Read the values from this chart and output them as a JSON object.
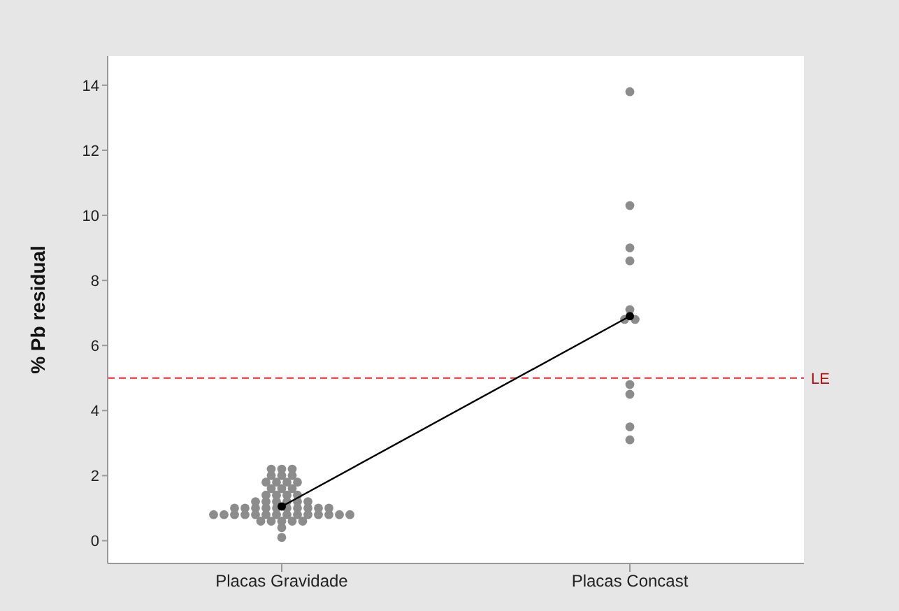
{
  "chart_data": {
    "type": "scatter",
    "ylabel": "% Pb residual",
    "categories": [
      "Placas Gravidade",
      "Placas Concast"
    ],
    "ylim": [
      -0.7,
      14.9
    ],
    "yticks": [
      0,
      2,
      4,
      6,
      8,
      10,
      12,
      14
    ],
    "grid": false,
    "legend": false,
    "series": [
      {
        "color": "#8c8c8c",
        "marker": "circle",
        "x": [
          "Placas Gravidade",
          "Placas Gravidade",
          "Placas Gravidade",
          "Placas Gravidade",
          "Placas Gravidade",
          "Placas Gravidade",
          "Placas Gravidade",
          "Placas Gravidade",
          "Placas Gravidade",
          "Placas Gravidade",
          "Placas Gravidade",
          "Placas Gravidade",
          "Placas Gravidade",
          "Placas Gravidade",
          "Placas Gravidade",
          "Placas Gravidade",
          "Placas Gravidade",
          "Placas Gravidade",
          "Placas Gravidade",
          "Placas Gravidade",
          "Placas Gravidade",
          "Placas Gravidade",
          "Placas Gravidade",
          "Placas Gravidade",
          "Placas Gravidade",
          "Placas Gravidade",
          "Placas Gravidade",
          "Placas Gravidade",
          "Placas Gravidade",
          "Placas Gravidade",
          "Placas Gravidade",
          "Placas Gravidade",
          "Placas Gravidade",
          "Placas Gravidade",
          "Placas Gravidade",
          "Placas Gravidade",
          "Placas Gravidade",
          "Placas Gravidade",
          "Placas Gravidade",
          "Placas Gravidade",
          "Placas Gravidade",
          "Placas Gravidade",
          "Placas Gravidade",
          "Placas Gravidade",
          "Placas Gravidade",
          "Placas Gravidade",
          "Placas Gravidade",
          "Placas Gravidade",
          "Placas Gravidade",
          "Placas Gravidade",
          "Placas Gravidade",
          "Placas Gravidade",
          "Placas Gravidade",
          "Placas Gravidade",
          "Placas Concast",
          "Placas Concast",
          "Placas Concast",
          "Placas Concast",
          "Placas Concast",
          "Placas Concast",
          "Placas Concast",
          "Placas Concast",
          "Placas Concast",
          "Placas Concast",
          "Placas Concast"
        ],
        "values": [
          2.2,
          2.2,
          2.2,
          2.0,
          2.0,
          2.0,
          1.8,
          1.8,
          1.8,
          1.8,
          1.6,
          1.6,
          1.6,
          1.4,
          1.4,
          1.4,
          1.4,
          1.2,
          1.2,
          1.2,
          1.2,
          1.2,
          1.2,
          1.0,
          1.0,
          1.0,
          1.0,
          1.0,
          1.0,
          1.0,
          1.0,
          1.0,
          1.0,
          0.8,
          0.8,
          0.8,
          0.8,
          0.8,
          0.8,
          0.8,
          0.8,
          0.8,
          0.8,
          0.8,
          0.8,
          0.8,
          0.8,
          0.6,
          0.6,
          0.6,
          0.6,
          0.6,
          0.4,
          0.1,
          13.8,
          10.3,
          9.0,
          8.6,
          7.1,
          6.8,
          6.8,
          4.8,
          4.5,
          3.5,
          3.1
        ]
      },
      {
        "type": "line",
        "color": "#000000",
        "marker": "circle",
        "x": [
          "Placas Gravidade",
          "Placas Concast"
        ],
        "values": [
          1.05,
          6.9
        ]
      }
    ],
    "ref_lines": [
      {
        "axis": "y",
        "value": 5,
        "label": "LE",
        "color": "#e8282d",
        "line_style": "dashed"
      }
    ]
  }
}
